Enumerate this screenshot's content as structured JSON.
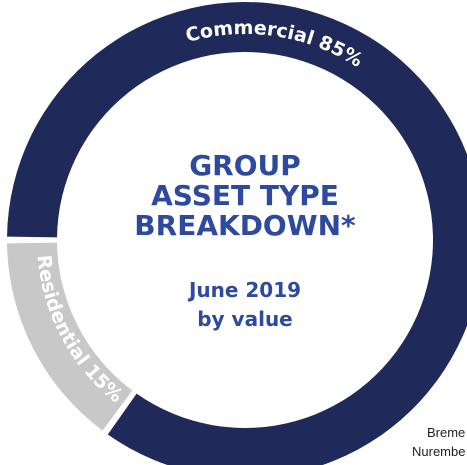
{
  "chart_data": {
    "type": "donut",
    "title_lines": [
      "GROUP",
      "ASSET TYPE",
      "BREAKDOWN*"
    ],
    "subtitle_lines": [
      "June 2019",
      "by value"
    ],
    "categories": [
      "Commercial",
      "Residential"
    ],
    "values": [
      85,
      15
    ],
    "value_labels": [
      "85%",
      "15%"
    ],
    "colors": [
      "#1f2a5a",
      "#c8c8c8"
    ]
  },
  "footer_fragments": [
    "Breme",
    "Nurembe"
  ]
}
